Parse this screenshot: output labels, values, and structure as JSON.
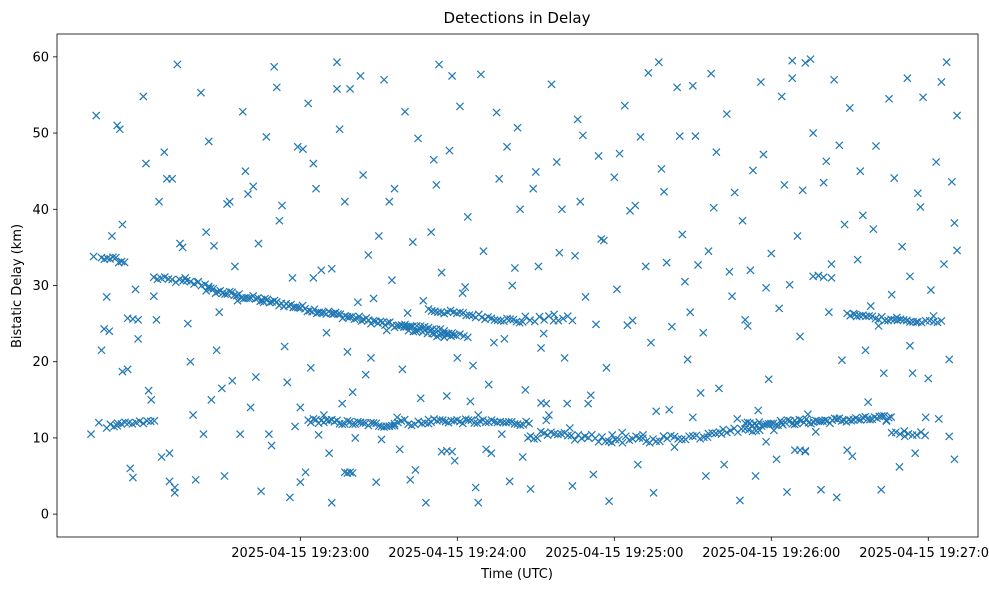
{
  "chart_data": {
    "type": "scatter",
    "title": "Detections in Delay",
    "xlabel": "Time (UTC)",
    "ylabel": "Bistatic Delay (km)",
    "x_unit": "seconds after 2025-04-15 19:22:00",
    "xlim": [
      -33,
      319
    ],
    "ylim": [
      -3,
      63
    ],
    "xticks": [
      {
        "value": 60,
        "label": "2025-04-15 19:23:00"
      },
      {
        "value": 120,
        "label": "2025-04-15 19:24:00"
      },
      {
        "value": 180,
        "label": "2025-04-15 19:25:00"
      },
      {
        "value": 240,
        "label": "2025-04-15 19:26:00"
      },
      {
        "value": 300,
        "label": "2025-04-15 19:27:00"
      }
    ],
    "yticks": [
      0,
      10,
      20,
      30,
      40,
      50,
      60
    ],
    "marker": "x",
    "color": "#1f77b4",
    "tracks": [
      {
        "name": "track-a",
        "x_start": 4,
        "x_end": 26,
        "y_start": 31,
        "y_end": 30,
        "step": 1.4,
        "jitter": 0.3
      },
      {
        "name": "track-b",
        "x_start": 24,
        "x_end": 119,
        "y_start": 29.5,
        "y_end": 23.2,
        "step": 0.9,
        "jitter": 0.35
      },
      {
        "name": "track-c",
        "x_start": 100,
        "x_end": 124,
        "y_start": 25,
        "y_end": 23.3,
        "step": 1.5,
        "jitter": 0.3
      },
      {
        "name": "track-d",
        "x_start": 109,
        "x_end": 146,
        "y_start": 26.8,
        "y_end": 25.2,
        "step": 1.2,
        "jitter": 0.3
      },
      {
        "name": "track-e",
        "x_start": 146,
        "x_end": 164,
        "y_start": 25.6,
        "y_end": 25.6,
        "step": 1.8,
        "jitter": 0.4
      },
      {
        "name": "track-f",
        "x_start": 269,
        "x_end": 296,
        "y_start": 26.2,
        "y_end": 25.2,
        "step": 1.2,
        "jitter": 0.3
      },
      {
        "name": "track-g",
        "x_start": 296,
        "x_end": 306,
        "y_start": 25.2,
        "y_end": 25.2,
        "step": 1.5,
        "jitter": 0.2
      },
      {
        "name": "track-h",
        "x_start": -16,
        "x_end": -7,
        "y_start": 33.8,
        "y_end": 33.1,
        "step": 1.1,
        "jitter": 0.3
      },
      {
        "name": "track-i",
        "x_start": -14,
        "x_end": 5,
        "y_start": 11.5,
        "y_end": 12.2,
        "step": 1.4,
        "jitter": 0.3
      },
      {
        "name": "track-j",
        "x_start": 63,
        "x_end": 96,
        "y_start": 12.3,
        "y_end": 11.6,
        "step": 1.0,
        "jitter": 0.3
      },
      {
        "name": "track-k",
        "x_start": 96,
        "x_end": 110,
        "y_start": 12.2,
        "y_end": 11.8,
        "step": 1.3,
        "jitter": 0.4
      },
      {
        "name": "track-l",
        "x_start": 110,
        "x_end": 148,
        "y_start": 12.3,
        "y_end": 11.9,
        "step": 1.1,
        "jitter": 0.3
      },
      {
        "name": "track-m",
        "x_start": 148,
        "x_end": 196,
        "y_start": 10.4,
        "y_end": 9.6,
        "step": 1.3,
        "jitter": 0.5
      },
      {
        "name": "track-n",
        "x_start": 196,
        "x_end": 216,
        "y_start": 9.9,
        "y_end": 10.3,
        "step": 1.4,
        "jitter": 0.4
      },
      {
        "name": "track-o",
        "x_start": 216,
        "x_end": 236,
        "y_start": 10.8,
        "y_end": 11.2,
        "step": 1.4,
        "jitter": 0.3
      },
      {
        "name": "track-p",
        "x_start": 230,
        "x_end": 286,
        "y_start": 11.8,
        "y_end": 12.6,
        "step": 0.9,
        "jitter": 0.35
      },
      {
        "name": "track-q",
        "x_start": 286,
        "x_end": 300,
        "y_start": 10.8,
        "y_end": 10.5,
        "step": 1.6,
        "jitter": 0.3
      }
    ],
    "scatter_points": [
      [
        -20,
        10.5
      ],
      [
        -18,
        52.3
      ],
      [
        -16,
        21.5
      ],
      [
        -15,
        24.3
      ],
      [
        -14,
        28.5
      ],
      [
        -12,
        36.5
      ],
      [
        -10,
        51
      ],
      [
        -8,
        38
      ],
      [
        -6,
        19
      ],
      [
        -5,
        6
      ],
      [
        -3,
        29.5
      ],
      [
        -2,
        23
      ],
      [
        0,
        54.8
      ],
      [
        1,
        46
      ],
      [
        3,
        15
      ],
      [
        5,
        25.5
      ],
      [
        6,
        41
      ],
      [
        8,
        47.5
      ],
      [
        9,
        44
      ],
      [
        10,
        8
      ],
      [
        12,
        3.5
      ],
      [
        13,
        59
      ],
      [
        15,
        35
      ],
      [
        16,
        31
      ],
      [
        18,
        20
      ],
      [
        19,
        13
      ],
      [
        20,
        4.5
      ],
      [
        22,
        55.3
      ],
      [
        24,
        37
      ],
      [
        25,
        48.9
      ],
      [
        27,
        35.2
      ],
      [
        28,
        21.5
      ],
      [
        30,
        16.5
      ],
      [
        31,
        5
      ],
      [
        33,
        41
      ],
      [
        35,
        32.5
      ],
      [
        36,
        28
      ],
      [
        38,
        52.8
      ],
      [
        39,
        45
      ],
      [
        41,
        14
      ],
      [
        42,
        43
      ],
      [
        44,
        35.5
      ],
      [
        45,
        3
      ],
      [
        47,
        49.5
      ],
      [
        48,
        10.5
      ],
      [
        50,
        58.7
      ],
      [
        51,
        56
      ],
      [
        53,
        40.5
      ],
      [
        54,
        22
      ],
      [
        56,
        2.2
      ],
      [
        57,
        31
      ],
      [
        59,
        48.2
      ],
      [
        60,
        14
      ],
      [
        62,
        5.5
      ],
      [
        63,
        53.9
      ],
      [
        65,
        46
      ],
      [
        66,
        42.7
      ],
      [
        68,
        32
      ],
      [
        69,
        13
      ],
      [
        71,
        8
      ],
      [
        72,
        1.5
      ],
      [
        74,
        59.3
      ],
      [
        75,
        50.5
      ],
      [
        77,
        41
      ],
      [
        78,
        21.3
      ],
      [
        80,
        16
      ],
      [
        81,
        10
      ],
      [
        83,
        57.5
      ],
      [
        84,
        44.5
      ],
      [
        86,
        34
      ],
      [
        87,
        20.5
      ],
      [
        89,
        4.2
      ],
      [
        90,
        36.5
      ],
      [
        92,
        57
      ],
      [
        94,
        41
      ],
      [
        95,
        30.7
      ],
      [
        97,
        12.7
      ],
      [
        98,
        8.5
      ],
      [
        100,
        52.8
      ],
      [
        102,
        4.5
      ],
      [
        103,
        35.7
      ],
      [
        105,
        49.3
      ],
      [
        107,
        28
      ],
      [
        108,
        1.5
      ],
      [
        110,
        37
      ],
      [
        111,
        46.5
      ],
      [
        113,
        59
      ],
      [
        114,
        31.7
      ],
      [
        116,
        15.5
      ],
      [
        118,
        57.5
      ],
      [
        119,
        7
      ],
      [
        121,
        53.5
      ],
      [
        122,
        29
      ],
      [
        124,
        39
      ],
      [
        126,
        19.5
      ],
      [
        127,
        3.5
      ],
      [
        129,
        57.7
      ],
      [
        130,
        34.5
      ],
      [
        132,
        17
      ],
      [
        133,
        8
      ],
      [
        135,
        52.7
      ],
      [
        136,
        44
      ],
      [
        138,
        23
      ],
      [
        140,
        4.3
      ],
      [
        141,
        30
      ],
      [
        143,
        50.7
      ],
      [
        144,
        40
      ],
      [
        146,
        16.3
      ],
      [
        148,
        3.3
      ],
      [
        150,
        44.9
      ],
      [
        151,
        32.5
      ],
      [
        153,
        23.7
      ],
      [
        155,
        13
      ],
      [
        156,
        56.4
      ],
      [
        158,
        46.2
      ],
      [
        159,
        34.3
      ],
      [
        161,
        20.5
      ],
      [
        162,
        14.5
      ],
      [
        164,
        3.7
      ],
      [
        166,
        51.8
      ],
      [
        167,
        41
      ],
      [
        169,
        28.5
      ],
      [
        170,
        14.5
      ],
      [
        172,
        5.2
      ],
      [
        174,
        47
      ],
      [
        175,
        36.1
      ],
      [
        177,
        19.2
      ],
      [
        178,
        1.7
      ],
      [
        180,
        44.2
      ],
      [
        181,
        29.5
      ],
      [
        183,
        10.7
      ],
      [
        184,
        53.6
      ],
      [
        186,
        39.8
      ],
      [
        187,
        25.4
      ],
      [
        189,
        6.5
      ],
      [
        190,
        49.5
      ],
      [
        192,
        32.5
      ],
      [
        194,
        22.5
      ],
      [
        195,
        2.8
      ],
      [
        197,
        59.3
      ],
      [
        198,
        45.3
      ],
      [
        200,
        33
      ],
      [
        201,
        13.7
      ],
      [
        203,
        8.8
      ],
      [
        204,
        56
      ],
      [
        206,
        36.7
      ],
      [
        208,
        20.3
      ],
      [
        209,
        26.5
      ],
      [
        211,
        49.6
      ],
      [
        212,
        32.7
      ],
      [
        214,
        23.8
      ],
      [
        215,
        5
      ],
      [
        217,
        57.8
      ],
      [
        218,
        40.2
      ],
      [
        220,
        16.5
      ],
      [
        222,
        6.5
      ],
      [
        223,
        52.5
      ],
      [
        225,
        28.6
      ],
      [
        226,
        42.2
      ],
      [
        228,
        1.8
      ],
      [
        229,
        38.5
      ],
      [
        231,
        24.7
      ],
      [
        232,
        32
      ],
      [
        234,
        5
      ],
      [
        236,
        56.7
      ],
      [
        237,
        47.2
      ],
      [
        239,
        17.7
      ],
      [
        240,
        34.2
      ],
      [
        242,
        7.2
      ],
      [
        243,
        27
      ],
      [
        245,
        43.2
      ],
      [
        246,
        2.9
      ],
      [
        248,
        57.2
      ],
      [
        250,
        36.5
      ],
      [
        251,
        23.3
      ],
      [
        253,
        8.2
      ],
      [
        255,
        59.7
      ],
      [
        256,
        50
      ],
      [
        258,
        31.3
      ],
      [
        259,
        3.2
      ],
      [
        261,
        46.3
      ],
      [
        262,
        26.5
      ],
      [
        264,
        57
      ],
      [
        265,
        2.2
      ],
      [
        267,
        20.2
      ],
      [
        268,
        38
      ],
      [
        270,
        53.3
      ],
      [
        271,
        7.6
      ],
      [
        273,
        33.4
      ],
      [
        274,
        45
      ],
      [
        276,
        21.5
      ],
      [
        277,
        14.7
      ],
      [
        279,
        37.4
      ],
      [
        280,
        48.3
      ],
      [
        282,
        3.2
      ],
      [
        283,
        18.5
      ],
      [
        285,
        54.5
      ],
      [
        286,
        28.8
      ],
      [
        287,
        44.1
      ],
      [
        289,
        6.2
      ],
      [
        290,
        35.1
      ],
      [
        292,
        57.2
      ],
      [
        293,
        22.1
      ],
      [
        295,
        8
      ],
      [
        297,
        40.3
      ],
      [
        298,
        54.7
      ],
      [
        300,
        17.8
      ],
      [
        301,
        29.4
      ],
      [
        303,
        46.2
      ],
      [
        304,
        12.5
      ],
      [
        306,
        32.8
      ],
      [
        307,
        59.3
      ],
      [
        308,
        20.3
      ],
      [
        309,
        43.6
      ],
      [
        310,
        7.2
      ],
      [
        311,
        34.6
      ],
      [
        311,
        52.3
      ],
      [
        -19,
        33.8
      ],
      [
        -17,
        12
      ],
      [
        -13,
        24
      ],
      [
        -9,
        50.5
      ],
      [
        -4,
        4.8
      ],
      [
        2,
        16.2
      ],
      [
        4,
        28.6
      ],
      [
        7,
        7.5
      ],
      [
        11,
        44
      ],
      [
        14,
        35.5
      ],
      [
        17,
        25
      ],
      [
        21,
        30.5
      ],
      [
        23,
        10.5
      ],
      [
        26,
        15
      ],
      [
        29,
        26.5
      ],
      [
        32,
        40.7
      ],
      [
        34,
        17.5
      ],
      [
        37,
        10.5
      ],
      [
        40,
        42
      ],
      [
        43,
        18
      ],
      [
        46,
        27.8
      ],
      [
        49,
        9
      ],
      [
        52,
        38.5
      ],
      [
        55,
        17.3
      ],
      [
        58,
        11.5
      ],
      [
        61,
        47.9
      ],
      [
        64,
        19.2
      ],
      [
        67,
        10.4
      ],
      [
        70,
        23.8
      ],
      [
        73,
        26.3
      ],
      [
        76,
        14.5
      ],
      [
        79,
        55.8
      ],
      [
        82,
        27.8
      ],
      [
        85,
        18.3
      ],
      [
        88,
        28.3
      ],
      [
        91,
        9.8
      ],
      [
        93,
        24.1
      ],
      [
        96,
        42.7
      ],
      [
        99,
        19
      ],
      [
        101,
        26.4
      ],
      [
        104,
        5.8
      ],
      [
        106,
        15.2
      ],
      [
        109,
        12.4
      ],
      [
        112,
        43.2
      ],
      [
        115,
        23.2
      ],
      [
        117,
        47.7
      ],
      [
        120,
        20.5
      ],
      [
        123,
        29.8
      ],
      [
        125,
        14.8
      ],
      [
        128,
        13
      ],
      [
        131,
        8.5
      ],
      [
        134,
        22.5
      ],
      [
        137,
        10.5
      ],
      [
        139,
        48.2
      ],
      [
        142,
        32.3
      ],
      [
        145,
        7.5
      ],
      [
        147,
        10
      ],
      [
        149,
        42.7
      ],
      [
        152,
        21.8
      ],
      [
        154,
        12.3
      ],
      [
        157,
        26.2
      ],
      [
        160,
        40
      ],
      [
        163,
        11.3
      ],
      [
        165,
        33.9
      ],
      [
        168,
        49.7
      ],
      [
        171,
        15.6
      ],
      [
        173,
        24.9
      ],
      [
        176,
        35.9
      ],
      [
        179,
        9.4
      ],
      [
        182,
        47.3
      ],
      [
        185,
        24.8
      ],
      [
        188,
        40.5
      ],
      [
        191,
        10.4
      ],
      [
        193,
        57.9
      ],
      [
        196,
        13.5
      ],
      [
        199,
        42.3
      ],
      [
        202,
        24.6
      ],
      [
        205,
        49.6
      ],
      [
        207,
        30.5
      ],
      [
        210,
        56.2
      ],
      [
        213,
        15.9
      ],
      [
        216,
        34.5
      ],
      [
        219,
        47.5
      ],
      [
        221,
        10.5
      ],
      [
        224,
        31.8
      ],
      [
        227,
        12.5
      ],
      [
        230,
        25.5
      ],
      [
        233,
        45.1
      ],
      [
        235,
        13.6
      ],
      [
        238,
        29.7
      ],
      [
        241,
        11
      ],
      [
        244,
        54.8
      ],
      [
        247,
        30.1
      ],
      [
        249,
        12.3
      ],
      [
        252,
        42.5
      ],
      [
        254,
        13.1
      ],
      [
        257,
        10.8
      ],
      [
        260,
        43.5
      ],
      [
        263,
        31
      ],
      [
        266,
        48.4
      ],
      [
        269,
        8.4
      ],
      [
        272,
        26.2
      ],
      [
        275,
        39.2
      ],
      [
        278,
        27.3
      ],
      [
        281,
        24.7
      ],
      [
        284,
        12.2
      ],
      [
        288,
        25.8
      ],
      [
        291,
        10.2
      ],
      [
        294,
        18.5
      ],
      [
        296,
        42.1
      ],
      [
        299,
        12.7
      ],
      [
        302,
        26
      ],
      [
        305,
        56.7
      ],
      [
        308,
        10.2
      ],
      [
        310,
        38.2
      ],
      [
        60,
        4.2
      ],
      [
        65,
        31
      ],
      [
        72,
        32.2
      ],
      [
        77,
        5.5
      ],
      [
        78,
        5.4
      ],
      [
        79,
        5.5
      ],
      [
        80,
        5.4
      ],
      [
        74,
        55.8
      ],
      [
        256,
        31.2
      ],
      [
        258,
        31.3
      ],
      [
        260,
        31.1
      ],
      [
        248,
        59.5
      ],
      [
        253,
        59.2
      ],
      [
        263,
        32.8
      ],
      [
        293,
        31.2
      ],
      [
        -10,
        11.6
      ],
      [
        -8,
        18.7
      ],
      [
        -6,
        25.7
      ],
      [
        -4,
        25.6
      ],
      [
        -2,
        25.5
      ],
      [
        10,
        4.3
      ],
      [
        12,
        2.8
      ],
      [
        238,
        9.5
      ],
      [
        244,
        12
      ],
      [
        152,
        14.6
      ],
      [
        154,
        14.5
      ],
      [
        210,
        12.7
      ],
      [
        249,
        8.4
      ],
      [
        251,
        8.4
      ],
      [
        253,
        8.3
      ],
      [
        114,
        8.2
      ],
      [
        116,
        8.3
      ],
      [
        118,
        8.2
      ],
      [
        128,
        1.5
      ]
    ]
  }
}
